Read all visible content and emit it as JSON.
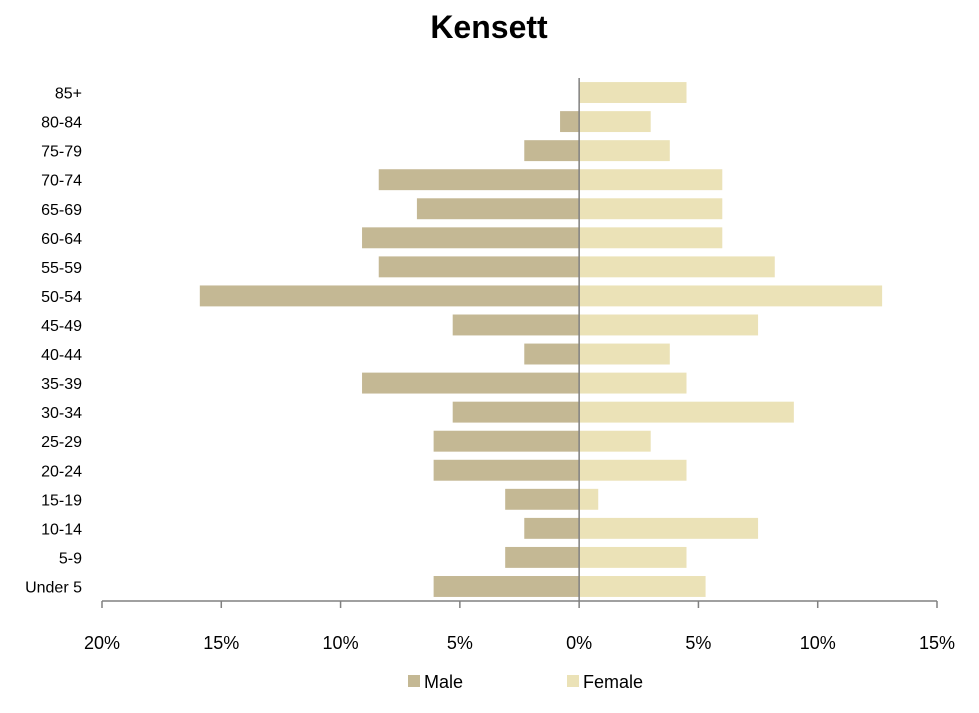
{
  "chart_data": {
    "type": "bar",
    "orientation": "horizontal",
    "title": "Kensett",
    "xlabel": "",
    "ylabel": "",
    "categories": [
      "85+",
      "80-84",
      "75-79",
      "70-74",
      "65-69",
      "60-64",
      "55-59",
      "50-54",
      "45-49",
      "40-44",
      "35-39",
      "30-34",
      "25-29",
      "20-24",
      "15-19",
      "10-14",
      "5-9",
      "Under 5"
    ],
    "series": [
      {
        "name": "Male",
        "color": "#c4b894",
        "values": [
          0,
          0.8,
          2.3,
          8.4,
          6.8,
          9.1,
          8.4,
          15.9,
          5.3,
          2.3,
          9.1,
          5.3,
          6.1,
          6.1,
          3.1,
          2.3,
          3.1,
          6.1
        ]
      },
      {
        "name": "Female",
        "color": "#ebe2b7",
        "values": [
          4.5,
          3.0,
          3.8,
          6.0,
          6.0,
          6.0,
          8.2,
          12.7,
          7.5,
          3.8,
          4.5,
          9.0,
          3.0,
          4.5,
          0.8,
          7.5,
          4.5,
          5.3
        ]
      }
    ],
    "xlim": [
      -20,
      15
    ],
    "xticks": [
      -20,
      -15,
      -10,
      -5,
      0,
      5,
      10,
      15
    ],
    "xtick_labels": [
      "20%",
      "15%",
      "10%",
      "5%",
      "0%",
      "5%",
      "10%",
      "15%"
    ],
    "grid": false,
    "legend_position": "bottom"
  }
}
